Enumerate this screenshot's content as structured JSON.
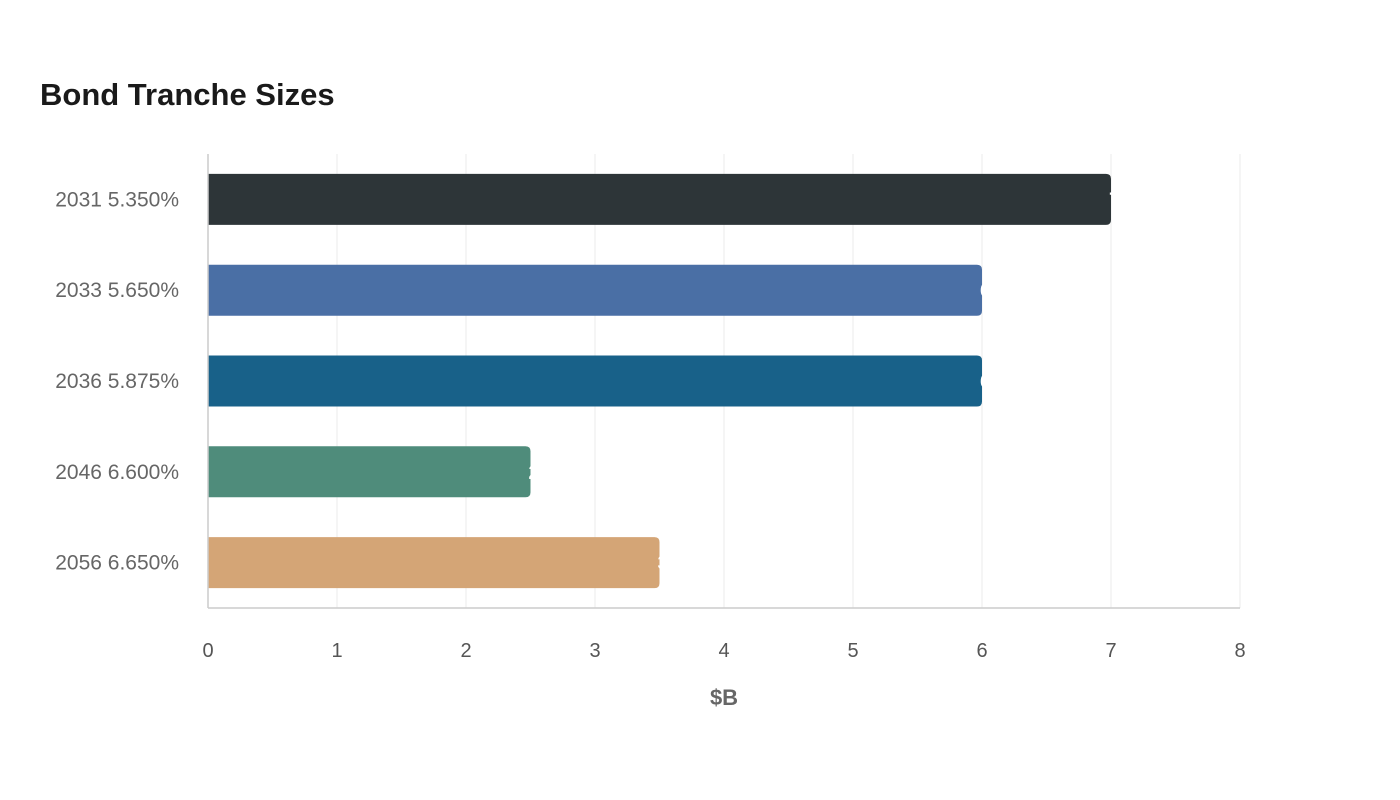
{
  "chart_data": {
    "type": "bar",
    "orientation": "horizontal",
    "title": "Bond Tranche Sizes",
    "xlabel": "$B",
    "ylabel": "",
    "categories": [
      "2031 5.350%",
      "2033 5.650%",
      "2036 5.875%",
      "2046 6.600%",
      "2056 6.650%"
    ],
    "values": [
      7,
      6,
      6,
      2.5,
      3.5
    ],
    "colors": [
      "#2d3538",
      "#4a6fa5",
      "#186189",
      "#4f8c7b",
      "#d4a576"
    ],
    "xlim": [
      0,
      8
    ],
    "xticks": [
      "0",
      "1",
      "2",
      "3",
      "4",
      "5",
      "6",
      "7",
      "8"
    ],
    "grid": true,
    "legend": "none"
  }
}
